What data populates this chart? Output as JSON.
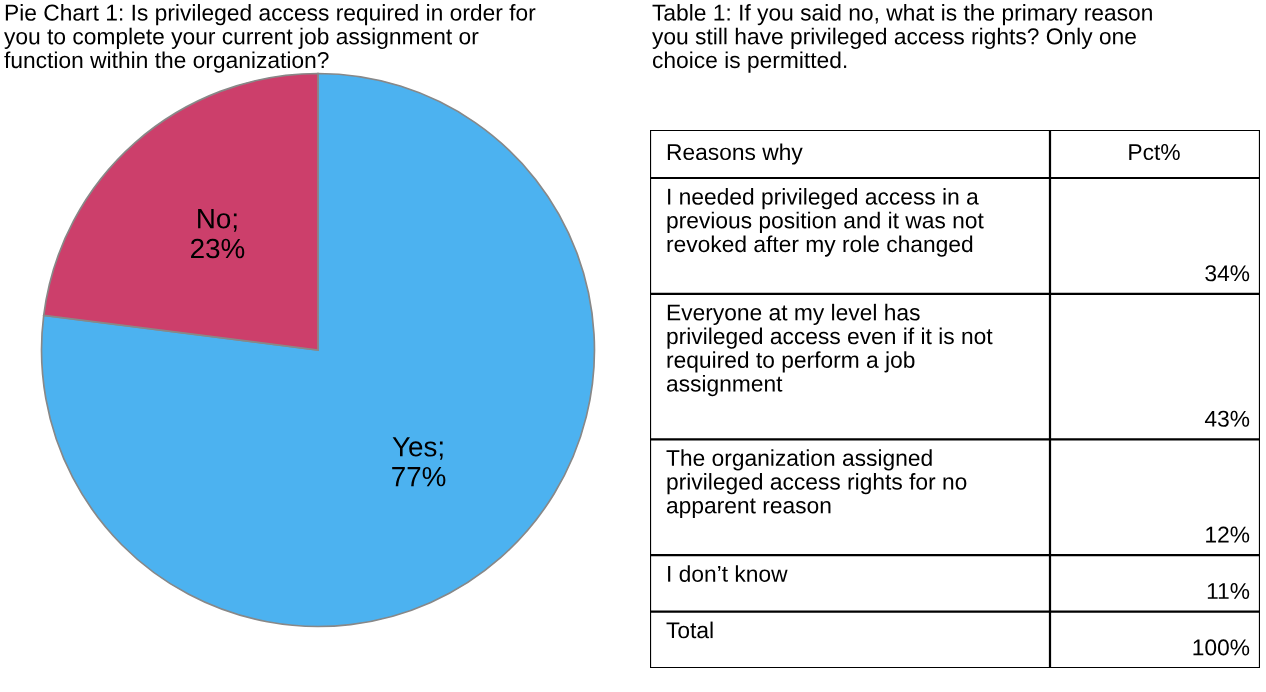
{
  "chart_data": [
    {
      "type": "pie",
      "title": "Pie Chart 1: Is privileged access required in order for\nyou to complete your current job assignment or\nfunction within the organization?",
      "categories": [
        "Yes",
        "No"
      ],
      "values": [
        77,
        23
      ],
      "value_labels": [
        ";\n77%",
        ";\n23%"
      ],
      "colors": [
        "#4cb2f0",
        "#cc3f6b"
      ],
      "legend": false
    },
    {
      "type": "other",
      "title": "Table 1: If you said no, what is the primary reason\nyou still have privileged access rights? Only one\nchoice is permitted.",
      "annotations": [
        "Reasons why",
        "Pct%"
      ],
      "categories": [
        "I needed privileged access in a\nprevious position and it was not\nrevoked after my role changed",
        "Everyone at my level has\nprivileged access even if it is not\nrequired to perform a job\nassignment",
        "The organization assigned\nprivileged access rights for no\napparent reason",
        "I don’t know",
        "Total"
      ],
      "values": [
        34,
        43,
        12,
        11,
        100
      ],
      "value_labels": [
        "34%",
        "43%",
        "12%",
        "11%",
        "100%"
      ]
    }
  ]
}
